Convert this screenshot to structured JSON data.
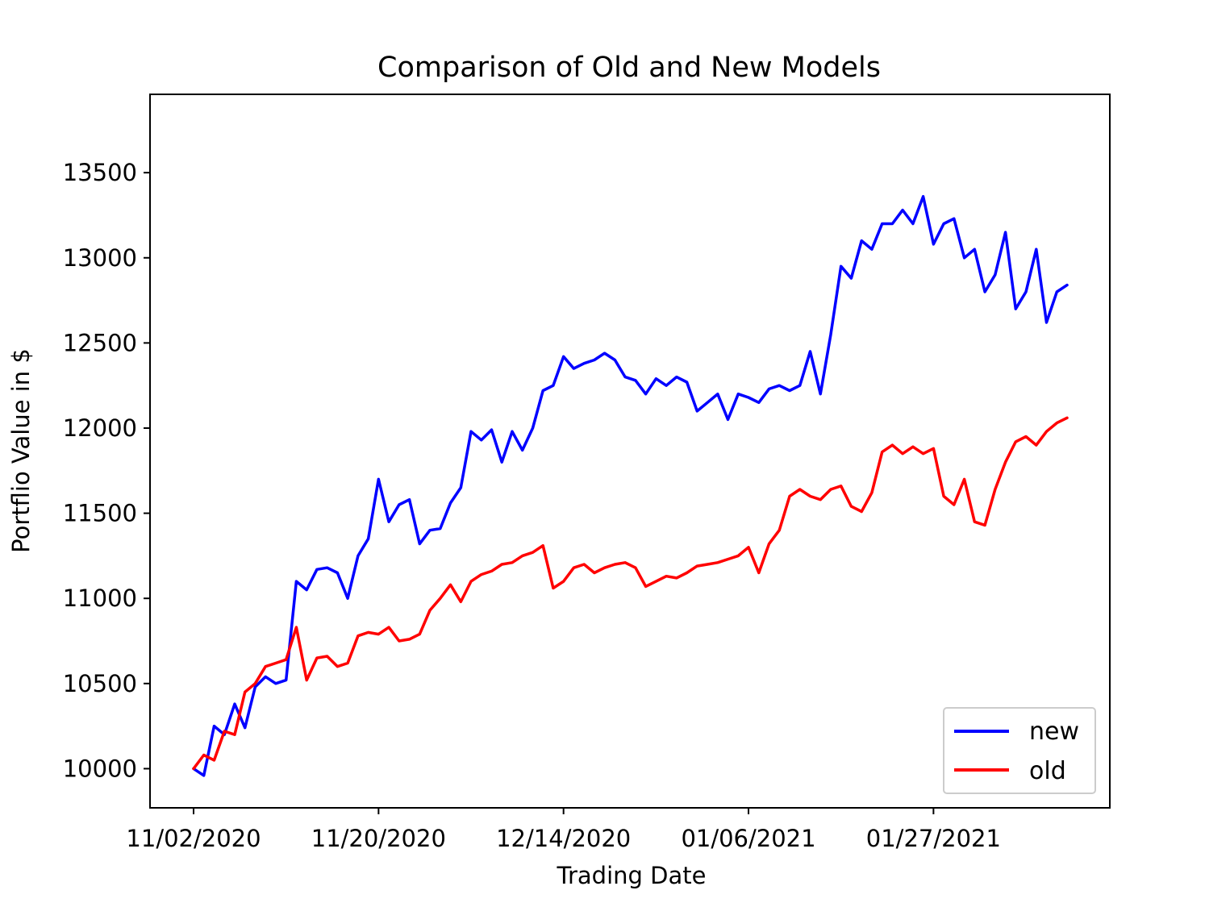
{
  "chart_data": {
    "type": "line",
    "title": "Comparison of Old and New Models",
    "xlabel": "Trading Date",
    "ylabel": "Portflio Value in $",
    "x_tick_labels": [
      "11/02/2020",
      "11/20/2020",
      "12/14/2020",
      "01/06/2021",
      "01/27/2021"
    ],
    "y_ticks": [
      10000,
      10500,
      11000,
      11500,
      12000,
      12500,
      13000,
      13500
    ],
    "ylim": [
      9770,
      13960
    ],
    "legend_position": "lower-right",
    "grid": false,
    "x_index_range": [
      0,
      85
    ],
    "x_tick_indices": [
      0,
      18,
      36,
      54,
      72
    ],
    "series": [
      {
        "name": "new",
        "color": "#0000ff",
        "values": [
          10000,
          9960,
          10250,
          10200,
          10380,
          10240,
          10480,
          10540,
          10500,
          10520,
          11100,
          11050,
          11170,
          11180,
          11150,
          11000,
          11250,
          11350,
          11700,
          11450,
          11550,
          11580,
          11320,
          11400,
          11410,
          11560,
          11650,
          11980,
          11930,
          11990,
          11800,
          11980,
          11870,
          12000,
          12220,
          12250,
          12420,
          12350,
          12380,
          12400,
          12440,
          12400,
          12300,
          12280,
          12200,
          12290,
          12250,
          12300,
          12270,
          12100,
          12150,
          12200,
          12050,
          12200,
          12180,
          12150,
          12230,
          12250,
          12220,
          12250,
          12450,
          12200,
          12550,
          12950,
          12880,
          13100,
          13050,
          13200,
          13200,
          13280,
          13200,
          13360,
          13080,
          13200,
          13230,
          13000,
          13050,
          12800,
          12900,
          13150,
          12700,
          12800,
          13050,
          12620,
          12800,
          12840
        ]
      },
      {
        "name": "old",
        "color": "#ff0000",
        "values": [
          10000,
          10080,
          10050,
          10220,
          10200,
          10450,
          10500,
          10600,
          10620,
          10640,
          10830,
          10520,
          10650,
          10660,
          10600,
          10620,
          10780,
          10800,
          10790,
          10830,
          10750,
          10760,
          10790,
          10930,
          11000,
          11080,
          10980,
          11100,
          11140,
          11160,
          11200,
          11210,
          11250,
          11270,
          11310,
          11060,
          11100,
          11180,
          11200,
          11150,
          11180,
          11200,
          11210,
          11180,
          11070,
          11100,
          11130,
          11120,
          11150,
          11190,
          11200,
          11210,
          11230,
          11250,
          11300,
          11150,
          11320,
          11400,
          11600,
          11640,
          11600,
          11580,
          11640,
          11660,
          11540,
          11510,
          11620,
          11860,
          11900,
          11850,
          11890,
          11850,
          11880,
          11600,
          11550,
          11700,
          11450,
          11430,
          11640,
          11800,
          11920,
          11950,
          11900,
          11980,
          12030,
          12060
        ]
      }
    ]
  }
}
